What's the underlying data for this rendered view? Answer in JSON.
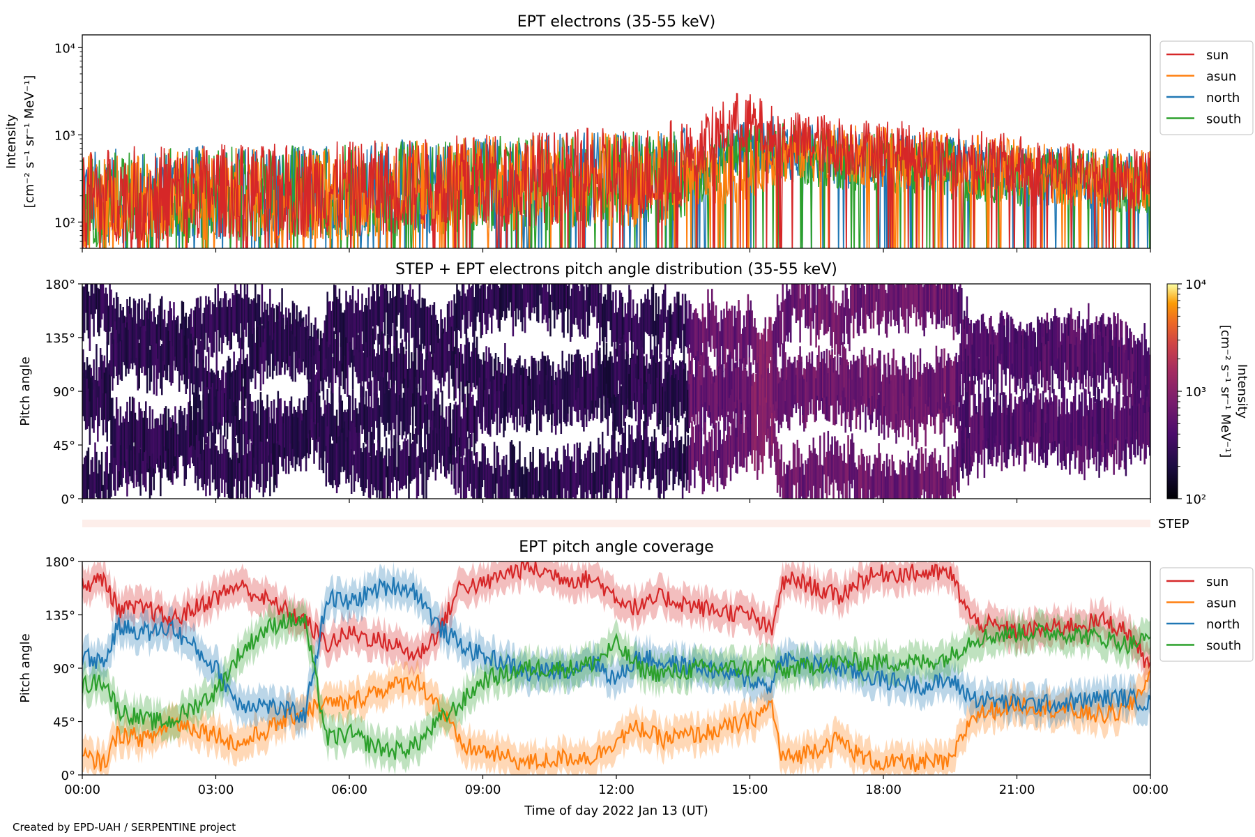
{
  "footer": {
    "credit": "Created by EPD-UAH / SERPENTINE project"
  },
  "colors": {
    "sun": "#d62728",
    "asun": "#ff7f0e",
    "north": "#1f77b4",
    "south": "#2ca02c",
    "step_band": "#fdeeea"
  },
  "chart_data": [
    {
      "type": "line",
      "title": "EPT electrons (35-55 keV)",
      "ylabel": [
        "Intensity",
        "[cm⁻² s⁻¹ sr⁻¹ MeV⁻¹]"
      ],
      "yscale": "log",
      "ylim": [
        50,
        14000
      ],
      "yticks": [
        {
          "value": 100,
          "label": "10²"
        },
        {
          "value": 1000,
          "label": "10³"
        },
        {
          "value": 10000,
          "label": "10⁴"
        }
      ],
      "xlim_hours": [
        0,
        24
      ],
      "legend": {
        "position": "right-outside-top",
        "entries": [
          "sun",
          "asun",
          "north",
          "south"
        ]
      },
      "series": [
        {
          "name": "sun",
          "x_hours": [
            0,
            1,
            2,
            3,
            4,
            5,
            6,
            7,
            8,
            9,
            10,
            11,
            12,
            13,
            13.7,
            14.5,
            14.8,
            15.5,
            16,
            17,
            18,
            19,
            20,
            21,
            22,
            23,
            24
          ],
          "y": [
            200,
            210,
            220,
            230,
            220,
            230,
            240,
            250,
            270,
            300,
            320,
            330,
            350,
            380,
            600,
            1200,
            1500,
            1000,
            850,
            750,
            680,
            600,
            520,
            450,
            380,
            320,
            300
          ]
        },
        {
          "name": "asun",
          "x_hours": [
            0,
            1,
            2,
            3,
            4,
            5,
            6,
            7,
            8,
            9,
            10,
            11,
            12,
            13,
            14,
            14.8,
            15.5,
            16,
            17,
            18,
            19,
            20,
            21,
            22,
            23,
            24
          ],
          "y": [
            180,
            190,
            200,
            210,
            200,
            210,
            220,
            240,
            260,
            280,
            290,
            300,
            300,
            320,
            330,
            350,
            550,
            650,
            600,
            550,
            500,
            450,
            400,
            350,
            320,
            300
          ]
        },
        {
          "name": "north",
          "x_hours": [
            0,
            1,
            2,
            3,
            4,
            5,
            6,
            7,
            8,
            9,
            10,
            11,
            12,
            13,
            14,
            14.8,
            15.5,
            16,
            17,
            18,
            19,
            20,
            21,
            22,
            23,
            24
          ],
          "y": [
            190,
            200,
            210,
            220,
            210,
            220,
            230,
            250,
            260,
            280,
            290,
            300,
            310,
            320,
            400,
            700,
            750,
            650,
            550,
            500,
            450,
            400,
            350,
            320,
            300,
            280
          ]
        },
        {
          "name": "south",
          "x_hours": [
            0,
            1,
            2,
            3,
            4,
            5,
            6,
            7,
            8,
            9,
            10,
            11,
            12,
            13,
            14,
            14.8,
            15.5,
            16,
            17,
            18,
            19,
            20,
            21,
            22,
            23,
            24
          ],
          "y": [
            180,
            190,
            200,
            210,
            200,
            220,
            230,
            240,
            250,
            270,
            280,
            290,
            300,
            320,
            380,
            600,
            650,
            600,
            520,
            480,
            430,
            380,
            340,
            310,
            290,
            270
          ]
        }
      ]
    },
    {
      "type": "heatmap",
      "title": "STEP + EPT electrons pitch angle distribution (35-55 keV)",
      "ylabel": "Pitch angle",
      "ylim": [
        0,
        180
      ],
      "yticks": [
        "0°",
        "45°",
        "90°",
        "135°",
        "180°"
      ],
      "xlim_hours": [
        0,
        24
      ],
      "colorbar": {
        "label": [
          "Intensity",
          "[cm⁻² s⁻¹ sr⁻¹ MeV⁻¹]"
        ],
        "scale": "log",
        "range": [
          100,
          10000
        ],
        "colormap": "inferno",
        "ticks": [
          "10²",
          "10³",
          "10⁴"
        ]
      },
      "intensity_level_by_hour": [
        {
          "x_hours": [
            0,
            13.6
          ],
          "value": 250
        },
        {
          "x_hours": [
            13.6,
            15.0
          ],
          "value": 600
        },
        {
          "x_hours": [
            15.0,
            15.5
          ],
          "value": 900
        },
        {
          "x_hours": [
            15.5,
            19.6
          ],
          "value": 650
        },
        {
          "x_hours": [
            19.6,
            24
          ],
          "value": 450
        }
      ]
    },
    {
      "type": "band",
      "label": "STEP"
    },
    {
      "type": "line",
      "title": "EPT pitch angle coverage",
      "xlabel": "Time of day 2022 Jan 13 (UT)",
      "ylabel": "Pitch angle",
      "ylim": [
        0,
        180
      ],
      "yticks": [
        "0°",
        "45°",
        "90°",
        "135°",
        "180°"
      ],
      "xlim_hours": [
        0,
        24
      ],
      "xticks": [
        "00:00",
        "03:00",
        "06:00",
        "09:00",
        "12:00",
        "15:00",
        "18:00",
        "21:00",
        "00:00"
      ],
      "legend": {
        "position": "right-outside-top",
        "entries": [
          "sun",
          "asun",
          "north",
          "south"
        ]
      },
      "band_halfwidth_deg": 14,
      "series": [
        {
          "name": "sun",
          "x_hours": [
            0,
            0.5,
            0.8,
            1.5,
            2,
            3,
            3.5,
            4,
            4.5,
            5,
            5.5,
            6,
            6.5,
            7,
            7.5,
            8,
            8.5,
            9,
            9.5,
            10,
            11,
            11.5,
            12,
            12.5,
            13,
            14,
            15,
            15.5,
            15.7,
            16,
            17,
            17.5,
            18,
            19,
            19.5,
            20,
            21,
            22,
            23,
            23.5,
            24
          ],
          "y": [
            160,
            165,
            140,
            140,
            130,
            150,
            160,
            150,
            140,
            130,
            110,
            120,
            115,
            110,
            100,
            120,
            160,
            160,
            170,
            175,
            165,
            165,
            150,
            140,
            150,
            140,
            135,
            120,
            160,
            165,
            150,
            165,
            170,
            170,
            170,
            130,
            120,
            125,
            130,
            120,
            90
          ]
        },
        {
          "name": "asun",
          "x_hours": [
            0,
            0.5,
            0.8,
            1.5,
            2,
            3,
            3.5,
            4,
            4.5,
            5,
            5.5,
            6,
            6.5,
            7,
            7.5,
            8,
            8.5,
            9,
            9.5,
            10,
            11,
            11.5,
            12,
            12.5,
            13,
            14,
            15,
            15.5,
            15.7,
            16,
            17,
            17.5,
            18,
            19,
            19.5,
            20,
            21,
            22,
            23,
            23.5,
            24
          ],
          "y": [
            15,
            10,
            35,
            30,
            45,
            35,
            25,
            35,
            45,
            55,
            60,
            60,
            70,
            75,
            80,
            60,
            25,
            20,
            15,
            10,
            15,
            15,
            30,
            40,
            30,
            35,
            45,
            60,
            15,
            15,
            30,
            15,
            10,
            10,
            10,
            50,
            60,
            55,
            50,
            55,
            85
          ]
        },
        {
          "name": "north",
          "x_hours": [
            0,
            0.5,
            0.8,
            1.5,
            2,
            3,
            3.5,
            4,
            4.5,
            5,
            5.5,
            6,
            6.5,
            7,
            7.5,
            8,
            8.5,
            9,
            9.5,
            10,
            11,
            11.5,
            12,
            12.5,
            13,
            14,
            15,
            15.5,
            15.7,
            16,
            17,
            17.5,
            18,
            19,
            19.5,
            20,
            21,
            22,
            23,
            23.5,
            24
          ],
          "y": [
            100,
            95,
            125,
            120,
            125,
            90,
            60,
            60,
            55,
            50,
            150,
            145,
            155,
            160,
            155,
            125,
            110,
            100,
            95,
            85,
            90,
            95,
            80,
            100,
            95,
            90,
            80,
            75,
            100,
            95,
            90,
            85,
            80,
            75,
            80,
            65,
            60,
            60,
            65,
            65,
            60
          ]
        },
        {
          "name": "south",
          "x_hours": [
            0,
            0.5,
            0.8,
            1.5,
            2,
            3,
            3.5,
            4,
            4.5,
            5,
            5.5,
            6,
            6.5,
            7,
            7.5,
            8,
            8.5,
            9,
            9.5,
            10,
            11,
            11.5,
            12,
            12.5,
            13,
            14,
            15,
            15.5,
            15.7,
            16,
            17,
            17.5,
            18,
            19,
            19.5,
            20,
            21,
            22,
            23,
            23.5,
            24
          ],
          "y": [
            75,
            80,
            55,
            45,
            45,
            70,
            100,
            120,
            130,
            130,
            30,
            35,
            25,
            20,
            25,
            45,
            60,
            80,
            85,
            90,
            90,
            95,
            110,
            90,
            85,
            90,
            90,
            95,
            85,
            90,
            95,
            95,
            95,
            95,
            100,
            115,
            120,
            120,
            115,
            110,
            115
          ]
        }
      ]
    }
  ]
}
